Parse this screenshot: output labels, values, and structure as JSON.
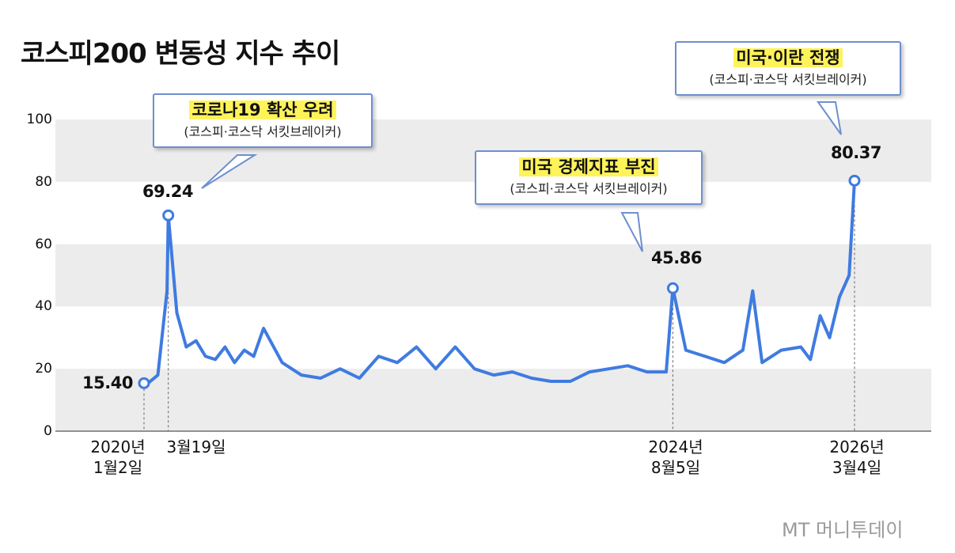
{
  "title": "코스피200 변동성 지수 추이",
  "brand": "MT 머니투데이",
  "colors": {
    "line": "#3f7be0",
    "band": "#ececec",
    "highlight": "#fff35a",
    "callout_border": "#6e8fcf"
  },
  "annotations": [
    {
      "head": "코로나19 확산 우려",
      "sub": "(코스피·코스닥 서킷브레이커)"
    },
    {
      "head": "미국 경제지표 부진",
      "sub": "(코스피·코스닥 서킷브레이커)"
    },
    {
      "head": "미국·이란 전쟁",
      "sub": "(코스피·코스닥 서킷브레이커)"
    }
  ],
  "point_labels": [
    "15.40",
    "69.24",
    "45.86",
    "80.37"
  ],
  "dates": [
    {
      "line1": "2020년",
      "line2": "1월2일"
    },
    {
      "line1": "3월19일",
      "line2": ""
    },
    {
      "line1": "2024년",
      "line2": "8월5일"
    },
    {
      "line1": "2026년",
      "line2": "3월4일"
    }
  ],
  "chart_data": {
    "type": "line",
    "title": "코스피200 변동성 지수 추이",
    "xlabel": "",
    "ylabel": "",
    "ylim": [
      0,
      100
    ],
    "yticks": [
      0,
      20,
      40,
      60,
      80,
      100
    ],
    "grid": "horizontal alternating bands",
    "key_points": [
      {
        "date": "2020-01-02",
        "value": 15.4
      },
      {
        "date": "2020-03-19",
        "value": 69.24
      },
      {
        "date": "2024-08-05",
        "value": 45.86
      },
      {
        "date": "2026-03-04",
        "value": 80.37
      }
    ],
    "series": [
      {
        "x": [
          "2020-01",
          "2020-02",
          "2020-03",
          "2020-03-19",
          "2020-04",
          "2020-05",
          "2020-06",
          "2020-07",
          "2020-08",
          "2020-09",
          "2020-10",
          "2020-11",
          "2020-12",
          "2021-01",
          "2021-03",
          "2021-05",
          "2021-07",
          "2021-09",
          "2021-11",
          "2022-01",
          "2022-03",
          "2022-05",
          "2022-07",
          "2022-09",
          "2022-11",
          "2023-01",
          "2023-03",
          "2023-05",
          "2023-07",
          "2023-09",
          "2023-11",
          "2024-01",
          "2024-03",
          "2024-05",
          "2024-07",
          "2024-08-05",
          "2024-09",
          "2024-11",
          "2025-01",
          "2025-03",
          "2025-04",
          "2025-05",
          "2025-07",
          "2025-09",
          "2025-10",
          "2025-11",
          "2025-12",
          "2026-01",
          "2026-02",
          "2026-03-04"
        ],
        "values": [
          15.4,
          18,
          45,
          69.24,
          38,
          27,
          29,
          24,
          23,
          27,
          22,
          26,
          24,
          33,
          22,
          18,
          17,
          20,
          17,
          24,
          22,
          27,
          20,
          27,
          20,
          18,
          19,
          17,
          16,
          16,
          19,
          20,
          21,
          19,
          19,
          45.86,
          26,
          24,
          22,
          26,
          45,
          22,
          26,
          27,
          23,
          37,
          30,
          43,
          50,
          80.37
        ]
      }
    ]
  }
}
